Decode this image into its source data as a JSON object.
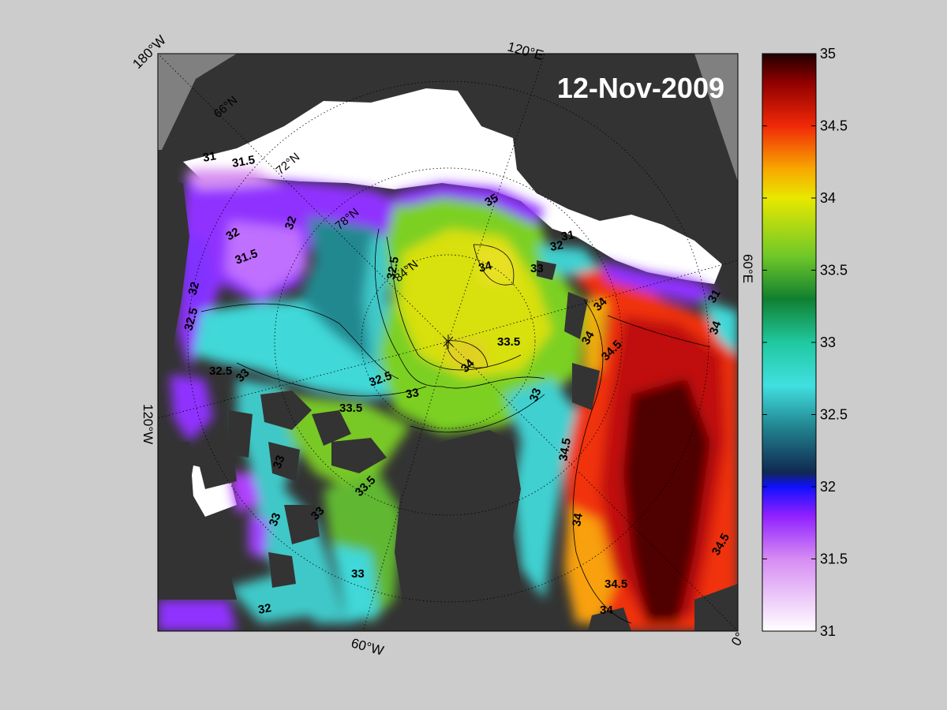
{
  "title": "12-Nov-2009",
  "map": {
    "border_labels": {
      "top_left": "180°W",
      "top": "120°E",
      "right": "60°E",
      "left": "120°W",
      "bottom": "60°W",
      "bottom_right": "0°"
    },
    "latitude_labels": [
      "66°N",
      "72°N",
      "78°N",
      "84°N"
    ],
    "contour_labels": [
      "31",
      "31.5",
      "31.5",
      "32",
      "32",
      "32",
      "32.5",
      "32.5",
      "32.5",
      "32.5",
      "33",
      "33",
      "33",
      "33",
      "33",
      "33",
      "33",
      "33.5",
      "33.5",
      "33.5",
      "34",
      "34",
      "34",
      "34",
      "34",
      "34",
      "34",
      "34.5",
      "34.5",
      "34.5",
      "34.5",
      "35",
      "31",
      "31",
      "32",
      "32",
      "33"
    ],
    "colors": {
      "land": "#333333",
      "sea_ice": "#ffffff",
      "plot_background": "#cccccc"
    }
  },
  "colorbar": {
    "min": 31,
    "max": 35,
    "ticks": [
      "31",
      "31.5",
      "32",
      "32.5",
      "33",
      "33.5",
      "34",
      "34.5",
      "35"
    ],
    "stops": [
      {
        "v": 31.0,
        "c": "#ffffff"
      },
      {
        "v": 31.5,
        "c": "#d68cf2"
      },
      {
        "v": 31.8,
        "c": "#9020ff"
      },
      {
        "v": 32.0,
        "c": "#1010ff"
      },
      {
        "v": 32.1,
        "c": "#102850"
      },
      {
        "v": 32.4,
        "c": "#20808c"
      },
      {
        "v": 32.7,
        "c": "#40e0e0"
      },
      {
        "v": 33.0,
        "c": "#20c8a0"
      },
      {
        "v": 33.3,
        "c": "#108030"
      },
      {
        "v": 33.6,
        "c": "#70c828"
      },
      {
        "v": 34.0,
        "c": "#e8e800"
      },
      {
        "v": 34.2,
        "c": "#f8a800"
      },
      {
        "v": 34.5,
        "c": "#f02808"
      },
      {
        "v": 34.8,
        "c": "#900000"
      },
      {
        "v": 35.0,
        "c": "#200000"
      }
    ]
  }
}
